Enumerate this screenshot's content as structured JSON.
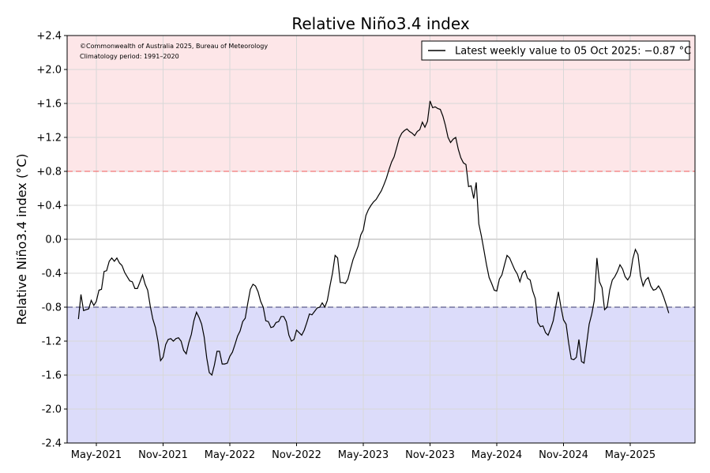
{
  "chart_data": {
    "type": "line",
    "title": "Relative Niño3.4 index",
    "ylabel": "Relative Niño3.4 index (°C)",
    "xlabel": "",
    "ylim": [
      -2.4,
      2.4
    ],
    "yticks": [
      "+2.4",
      "+2.0",
      "+1.6",
      "+1.2",
      "+0.8",
      "+0.4",
      "0.0",
      "-0.4",
      "-0.8",
      "-1.2",
      "-1.6",
      "-2.0",
      "-2.4"
    ],
    "xticks": [
      "May-2021",
      "Nov-2021",
      "May-2022",
      "Nov-2022",
      "May-2023",
      "Nov-2023",
      "May-2024",
      "Nov-2024",
      "May-2025"
    ],
    "thresholds": {
      "el_nino": 0.8,
      "la_nina": -0.8
    },
    "colors": {
      "el_nino_fill": "#fde6e8",
      "la_nina_fill": "#dcdcfa",
      "el_nino_line": "#f07878",
      "la_nina_line": "#5a5a8a",
      "series": "#000000"
    },
    "grid": true,
    "legend_position": "top-right",
    "legend_label": "Latest weekly value to 05 Oct 2025: −0.87 °C",
    "annotations": [
      "©Commonwealth of Australia 2025, Bureau of Meteorology",
      "Climatology period: 1991–2020"
    ],
    "series": [
      {
        "x_start_week": -7,
        "values": [
          -0.94,
          -0.65,
          -0.84,
          -0.83,
          -0.82,
          -0.72,
          -0.78,
          -0.73,
          -0.6,
          -0.59,
          -0.38,
          -0.37,
          -0.26,
          -0.22,
          -0.26,
          -0.22,
          -0.28,
          -0.31,
          -0.39,
          -0.44,
          -0.49,
          -0.5,
          -0.58,
          -0.58,
          -0.5,
          -0.42,
          -0.53,
          -0.6,
          -0.79,
          -0.94,
          -1.04,
          -1.2,
          -1.43,
          -1.39,
          -1.24,
          -1.18,
          -1.17,
          -1.2,
          -1.17,
          -1.16,
          -1.2,
          -1.31,
          -1.35,
          -1.22,
          -1.12,
          -0.96,
          -0.86,
          -0.92,
          -1.0,
          -1.15,
          -1.4,
          -1.57,
          -1.6,
          -1.48,
          -1.32,
          -1.32,
          -1.47,
          -1.47,
          -1.46,
          -1.38,
          -1.33,
          -1.24,
          -1.14,
          -1.08,
          -0.97,
          -0.93,
          -0.75,
          -0.59,
          -0.53,
          -0.55,
          -0.62,
          -0.73,
          -0.8,
          -0.96,
          -0.97,
          -1.04,
          -1.03,
          -0.98,
          -0.97,
          -0.91,
          -0.91,
          -0.97,
          -1.13,
          -1.2,
          -1.18,
          -1.07,
          -1.1,
          -1.13,
          -1.07,
          -0.98,
          -0.88,
          -0.89,
          -0.85,
          -0.81,
          -0.8,
          -0.75,
          -0.8,
          -0.72,
          -0.55,
          -0.4,
          -0.19,
          -0.22,
          -0.51,
          -0.51,
          -0.52,
          -0.47,
          -0.35,
          -0.24,
          -0.16,
          -0.08,
          0.05,
          0.11,
          0.28,
          0.35,
          0.4,
          0.44,
          0.47,
          0.52,
          0.57,
          0.64,
          0.72,
          0.82,
          0.91,
          0.97,
          1.08,
          1.19,
          1.25,
          1.28,
          1.3,
          1.27,
          1.25,
          1.22,
          1.27,
          1.29,
          1.38,
          1.32,
          1.39,
          1.63,
          1.55,
          1.56,
          1.54,
          1.53,
          1.45,
          1.34,
          1.2,
          1.14,
          1.18,
          1.2,
          1.06,
          0.96,
          0.9,
          0.88,
          0.62,
          0.63,
          0.48,
          0.67,
          0.18,
          0.04,
          -0.13,
          -0.3,
          -0.45,
          -0.52,
          -0.6,
          -0.61,
          -0.47,
          -0.42,
          -0.3,
          -0.19,
          -0.22,
          -0.29,
          -0.36,
          -0.41,
          -0.5,
          -0.4,
          -0.37,
          -0.46,
          -0.48,
          -0.61,
          -0.7,
          -0.98,
          -1.03,
          -1.02,
          -1.1,
          -1.13,
          -1.05,
          -0.96,
          -0.79,
          -0.62,
          -0.8,
          -0.95,
          -1.0,
          -1.22,
          -1.41,
          -1.42,
          -1.39,
          -1.18,
          -1.44,
          -1.46,
          -1.23,
          -1.0,
          -0.88,
          -0.72,
          -0.22,
          -0.5,
          -0.57,
          -0.83,
          -0.8,
          -0.6,
          -0.48,
          -0.44,
          -0.38,
          -0.3,
          -0.35,
          -0.44,
          -0.48,
          -0.43,
          -0.23,
          -0.12,
          -0.18,
          -0.43,
          -0.55,
          -0.48,
          -0.45,
          -0.55,
          -0.6,
          -0.59,
          -0.55,
          -0.6,
          -0.68,
          -0.77,
          -0.87
        ]
      }
    ]
  }
}
